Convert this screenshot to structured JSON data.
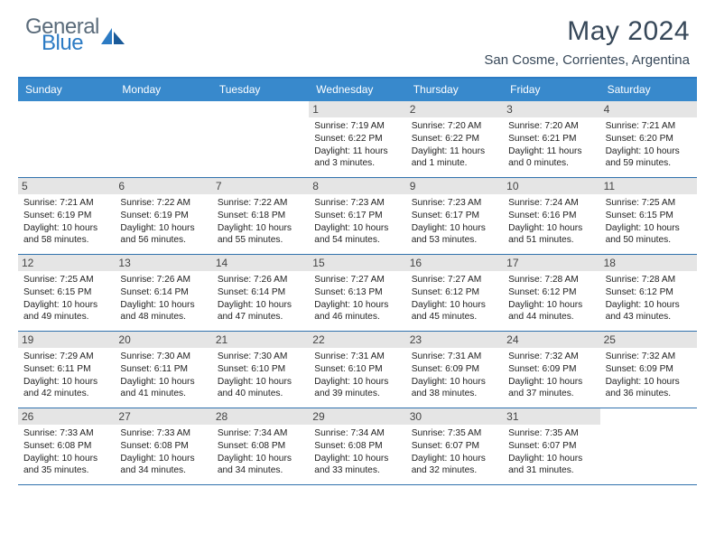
{
  "logo": {
    "text1": "General",
    "text2": "Blue"
  },
  "title": "May 2024",
  "location": "San Cosme, Corrientes, Argentina",
  "colors": {
    "header_bg": "#3889cc",
    "border_top": "#2c7bc4",
    "row_border": "#3172ad",
    "daynum_bg": "#e5e5e5",
    "text_dark": "#374859",
    "logo_gray": "#5a6b7a",
    "logo_blue": "#2c7bc4"
  },
  "weekdays": [
    "Sunday",
    "Monday",
    "Tuesday",
    "Wednesday",
    "Thursday",
    "Friday",
    "Saturday"
  ],
  "weeks": [
    [
      {
        "n": "",
        "empty": true
      },
      {
        "n": "",
        "empty": true
      },
      {
        "n": "",
        "empty": true
      },
      {
        "n": "1",
        "sunrise": "7:19 AM",
        "sunset": "6:22 PM",
        "daylight": "11 hours and 3 minutes."
      },
      {
        "n": "2",
        "sunrise": "7:20 AM",
        "sunset": "6:22 PM",
        "daylight": "11 hours and 1 minute."
      },
      {
        "n": "3",
        "sunrise": "7:20 AM",
        "sunset": "6:21 PM",
        "daylight": "11 hours and 0 minutes."
      },
      {
        "n": "4",
        "sunrise": "7:21 AM",
        "sunset": "6:20 PM",
        "daylight": "10 hours and 59 minutes."
      }
    ],
    [
      {
        "n": "5",
        "sunrise": "7:21 AM",
        "sunset": "6:19 PM",
        "daylight": "10 hours and 58 minutes."
      },
      {
        "n": "6",
        "sunrise": "7:22 AM",
        "sunset": "6:19 PM",
        "daylight": "10 hours and 56 minutes."
      },
      {
        "n": "7",
        "sunrise": "7:22 AM",
        "sunset": "6:18 PM",
        "daylight": "10 hours and 55 minutes."
      },
      {
        "n": "8",
        "sunrise": "7:23 AM",
        "sunset": "6:17 PM",
        "daylight": "10 hours and 54 minutes."
      },
      {
        "n": "9",
        "sunrise": "7:23 AM",
        "sunset": "6:17 PM",
        "daylight": "10 hours and 53 minutes."
      },
      {
        "n": "10",
        "sunrise": "7:24 AM",
        "sunset": "6:16 PM",
        "daylight": "10 hours and 51 minutes."
      },
      {
        "n": "11",
        "sunrise": "7:25 AM",
        "sunset": "6:15 PM",
        "daylight": "10 hours and 50 minutes."
      }
    ],
    [
      {
        "n": "12",
        "sunrise": "7:25 AM",
        "sunset": "6:15 PM",
        "daylight": "10 hours and 49 minutes."
      },
      {
        "n": "13",
        "sunrise": "7:26 AM",
        "sunset": "6:14 PM",
        "daylight": "10 hours and 48 minutes."
      },
      {
        "n": "14",
        "sunrise": "7:26 AM",
        "sunset": "6:14 PM",
        "daylight": "10 hours and 47 minutes."
      },
      {
        "n": "15",
        "sunrise": "7:27 AM",
        "sunset": "6:13 PM",
        "daylight": "10 hours and 46 minutes."
      },
      {
        "n": "16",
        "sunrise": "7:27 AM",
        "sunset": "6:12 PM",
        "daylight": "10 hours and 45 minutes."
      },
      {
        "n": "17",
        "sunrise": "7:28 AM",
        "sunset": "6:12 PM",
        "daylight": "10 hours and 44 minutes."
      },
      {
        "n": "18",
        "sunrise": "7:28 AM",
        "sunset": "6:12 PM",
        "daylight": "10 hours and 43 minutes."
      }
    ],
    [
      {
        "n": "19",
        "sunrise": "7:29 AM",
        "sunset": "6:11 PM",
        "daylight": "10 hours and 42 minutes."
      },
      {
        "n": "20",
        "sunrise": "7:30 AM",
        "sunset": "6:11 PM",
        "daylight": "10 hours and 41 minutes."
      },
      {
        "n": "21",
        "sunrise": "7:30 AM",
        "sunset": "6:10 PM",
        "daylight": "10 hours and 40 minutes."
      },
      {
        "n": "22",
        "sunrise": "7:31 AM",
        "sunset": "6:10 PM",
        "daylight": "10 hours and 39 minutes."
      },
      {
        "n": "23",
        "sunrise": "7:31 AM",
        "sunset": "6:09 PM",
        "daylight": "10 hours and 38 minutes."
      },
      {
        "n": "24",
        "sunrise": "7:32 AM",
        "sunset": "6:09 PM",
        "daylight": "10 hours and 37 minutes."
      },
      {
        "n": "25",
        "sunrise": "7:32 AM",
        "sunset": "6:09 PM",
        "daylight": "10 hours and 36 minutes."
      }
    ],
    [
      {
        "n": "26",
        "sunrise": "7:33 AM",
        "sunset": "6:08 PM",
        "daylight": "10 hours and 35 minutes."
      },
      {
        "n": "27",
        "sunrise": "7:33 AM",
        "sunset": "6:08 PM",
        "daylight": "10 hours and 34 minutes."
      },
      {
        "n": "28",
        "sunrise": "7:34 AM",
        "sunset": "6:08 PM",
        "daylight": "10 hours and 34 minutes."
      },
      {
        "n": "29",
        "sunrise": "7:34 AM",
        "sunset": "6:08 PM",
        "daylight": "10 hours and 33 minutes."
      },
      {
        "n": "30",
        "sunrise": "7:35 AM",
        "sunset": "6:07 PM",
        "daylight": "10 hours and 32 minutes."
      },
      {
        "n": "31",
        "sunrise": "7:35 AM",
        "sunset": "6:07 PM",
        "daylight": "10 hours and 31 minutes."
      },
      {
        "n": "",
        "empty": true
      }
    ]
  ],
  "labels": {
    "sunrise": "Sunrise:",
    "sunset": "Sunset:",
    "daylight": "Daylight:"
  }
}
